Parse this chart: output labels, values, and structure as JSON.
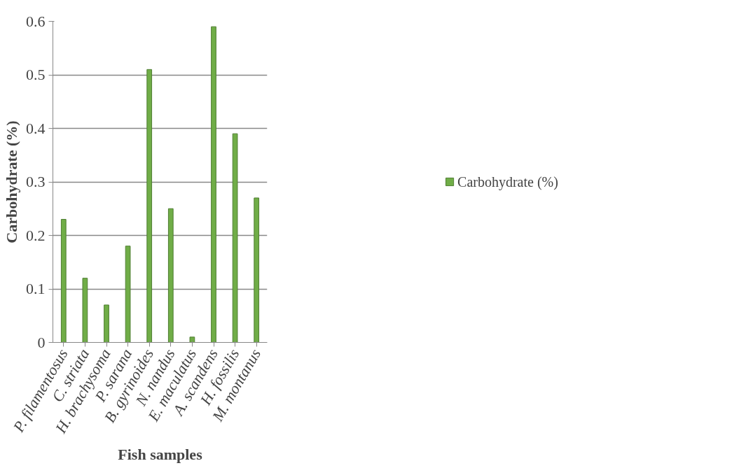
{
  "chart_data": {
    "type": "bar",
    "xlabel": "Fish samples",
    "ylabel": "Carbohydrate (%)",
    "categories": [
      "P. filamentosus",
      "C. striata",
      "H. brachysoma",
      "P. sarana",
      "B. gyrinoides",
      "N. nandus",
      "E. maculatus",
      "A. scandens",
      "H. fossilis",
      "M. montanus"
    ],
    "series": [
      {
        "name": "Carbohydrate (%)",
        "color": "#70ad47",
        "values": [
          0.23,
          0.12,
          0.07,
          0.18,
          0.51,
          0.25,
          0.01,
          0.59,
          0.39,
          0.27
        ]
      }
    ],
    "ylim": [
      0,
      0.6
    ],
    "yticks": [
      0,
      0.1,
      0.2,
      0.3,
      0.4,
      0.5,
      0.6
    ],
    "grid": "y",
    "legend": "right"
  }
}
